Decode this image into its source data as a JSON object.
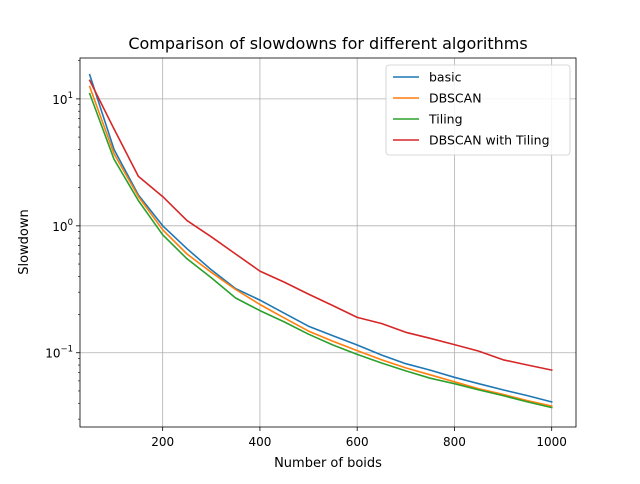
{
  "chart_data": {
    "type": "line",
    "title": "Comparison of slowdowns for different algorithms",
    "xlabel": "Number of boids",
    "ylabel": "Slowdown",
    "xlim": [
      30,
      1050
    ],
    "ylim": [
      0.026,
      21
    ],
    "yscale": "log",
    "grid": true,
    "legend_position": "top-right",
    "x_ticks": [
      200,
      400,
      600,
      800,
      1000
    ],
    "x_tick_labels": [
      "200",
      "400",
      "600",
      "800",
      "1000"
    ],
    "y_ticks": [
      0.1,
      1,
      10
    ],
    "y_tick_labels": [
      "10",
      "10",
      "10"
    ],
    "y_tick_exponents": [
      "−1",
      "0",
      "1"
    ],
    "x": [
      50,
      100,
      150,
      200,
      250,
      300,
      350,
      400,
      450,
      500,
      550,
      600,
      650,
      700,
      750,
      800,
      850,
      900,
      950,
      1000
    ],
    "series": [
      {
        "name": "basic",
        "color": "#1f77b4",
        "values": [
          15.5,
          4.0,
          1.75,
          1.0,
          0.66,
          0.45,
          0.32,
          0.26,
          0.205,
          0.162,
          0.136,
          0.115,
          0.096,
          0.082,
          0.073,
          0.064,
          0.057,
          0.051,
          0.046,
          0.041
        ]
      },
      {
        "name": "DBSCAN",
        "color": "#ff7f0e",
        "values": [
          12.5,
          3.7,
          1.7,
          0.93,
          0.6,
          0.43,
          0.315,
          0.24,
          0.188,
          0.148,
          0.123,
          0.104,
          0.088,
          0.076,
          0.067,
          0.059,
          0.052,
          0.047,
          0.042,
          0.038
        ]
      },
      {
        "name": "Tiling",
        "color": "#2ca02c",
        "values": [
          11.0,
          3.35,
          1.58,
          0.85,
          0.55,
          0.39,
          0.27,
          0.215,
          0.175,
          0.14,
          0.115,
          0.097,
          0.083,
          0.072,
          0.063,
          0.057,
          0.051,
          0.046,
          0.041,
          0.037
        ]
      },
      {
        "name": "DBSCAN with Tiling",
        "color": "#d62728",
        "values": [
          14.0,
          5.8,
          2.45,
          1.7,
          1.1,
          0.82,
          0.6,
          0.44,
          0.36,
          0.29,
          0.235,
          0.19,
          0.17,
          0.145,
          0.13,
          0.116,
          0.103,
          0.088,
          0.08,
          0.073
        ]
      }
    ]
  }
}
